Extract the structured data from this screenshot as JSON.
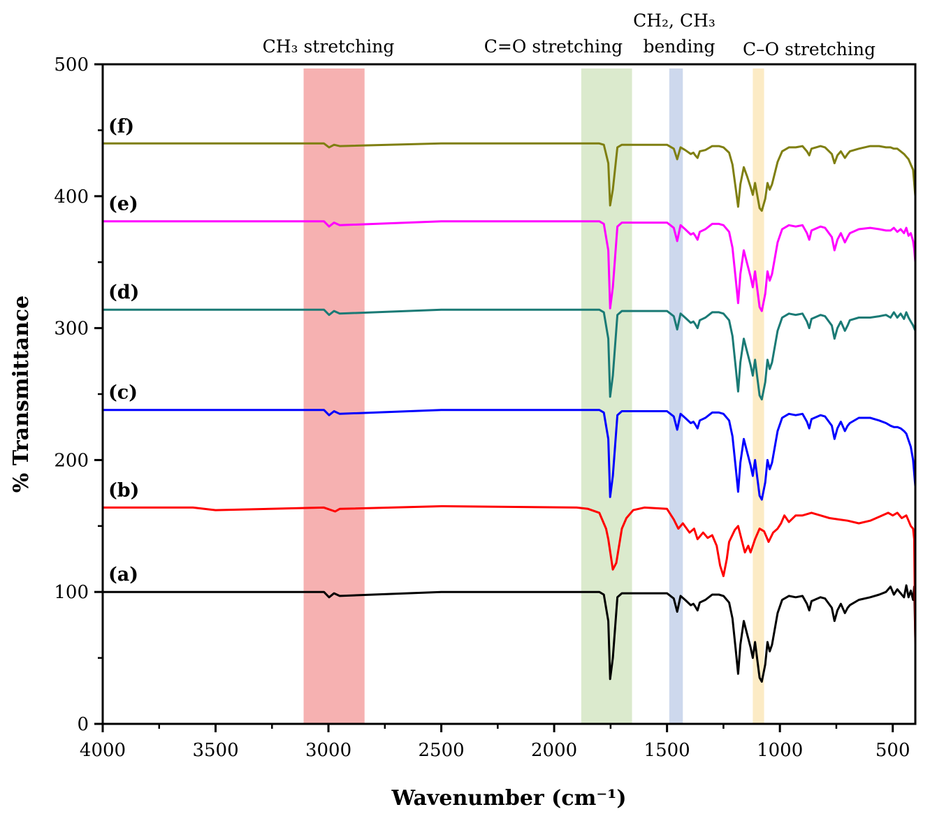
{
  "chart_data": {
    "type": "line",
    "title": "",
    "xlabel": "Wavenumber (cm⁻¹)",
    "ylabel": "% Transmittance",
    "xlim": [
      4000,
      400
    ],
    "ylim": [
      0,
      500
    ],
    "x_ticks": [
      4000,
      3500,
      3000,
      2500,
      2000,
      1500,
      1000,
      500
    ],
    "x_tick_labels": [
      "4000",
      "3500",
      "3000",
      "2500",
      "2000",
      "1500",
      "1000",
      "500"
    ],
    "y_ticks": [
      0,
      100,
      200,
      300,
      400,
      500
    ],
    "y_tick_labels": [
      "0",
      "100",
      "200",
      "300",
      "400",
      "500"
    ],
    "grid": false,
    "bands": [
      {
        "from": 3110,
        "to": 2840,
        "color": "#f5a3a3",
        "label": "CH₃ stretching"
      },
      {
        "from": 1880,
        "to": 1655,
        "color": "#d5e6c4",
        "label": "C=O stretching"
      },
      {
        "from": 1490,
        "to": 1430,
        "color": "#c4d1ea",
        "label_line1": "CH₂, CH₃",
        "label_line2": "bending"
      },
      {
        "from": 1120,
        "to": 1070,
        "color": "#fbe8bb",
        "label": "C–O stretching"
      }
    ],
    "series": [
      {
        "name": "(a)",
        "color": "#000000",
        "baseline": 100,
        "x": [
          4000,
          3600,
          3020,
          2997,
          2975,
          2950,
          2500,
          1900,
          1800,
          1780,
          1760,
          1752,
          1740,
          1720,
          1700,
          1500,
          1470,
          1455,
          1440,
          1420,
          1395,
          1383,
          1375,
          1365,
          1355,
          1330,
          1300,
          1270,
          1250,
          1225,
          1210,
          1195,
          1185,
          1175,
          1160,
          1145,
          1130,
          1120,
          1110,
          1090,
          1080,
          1065,
          1055,
          1045,
          1035,
          1010,
          990,
          960,
          930,
          900,
          880,
          870,
          860,
          820,
          800,
          770,
          758,
          745,
          730,
          712,
          700,
          690,
          650,
          600,
          560,
          530,
          510,
          495,
          480,
          465,
          450,
          440,
          430,
          420,
          410,
          405,
          400
        ],
        "y": [
          100,
          100,
          100,
          96,
          99,
          97,
          100,
          100,
          100,
          98,
          78,
          34,
          50,
          96,
          99,
          99,
          95,
          85,
          97,
          94,
          90,
          91,
          89,
          86,
          92,
          94,
          98,
          98,
          97,
          92,
          80,
          55,
          38,
          60,
          78,
          68,
          58,
          50,
          62,
          35,
          32,
          45,
          62,
          55,
          60,
          84,
          94,
          97,
          96,
          97,
          91,
          86,
          93,
          96,
          95,
          88,
          78,
          86,
          91,
          84,
          88,
          90,
          94,
          96,
          98,
          100,
          104,
          98,
          102,
          99,
          96,
          105,
          96,
          101,
          94,
          104,
          65
        ]
      },
      {
        "name": "(b)",
        "color": "#ff0000",
        "baseline": 164,
        "x": [
          4000,
          3600,
          3500,
          3020,
          2970,
          2950,
          2500,
          1900,
          1850,
          1800,
          1770,
          1760,
          1740,
          1725,
          1700,
          1680,
          1650,
          1600,
          1500,
          1470,
          1450,
          1430,
          1400,
          1380,
          1365,
          1340,
          1320,
          1300,
          1280,
          1265,
          1250,
          1235,
          1225,
          1200,
          1185,
          1170,
          1155,
          1140,
          1130,
          1110,
          1090,
          1070,
          1050,
          1030,
          1010,
          995,
          980,
          960,
          930,
          900,
          860,
          820,
          780,
          740,
          700,
          650,
          600,
          560,
          520,
          500,
          480,
          460,
          440,
          430,
          420,
          410,
          405,
          400
        ],
        "y": [
          164,
          164,
          162,
          164,
          161,
          163,
          165,
          164,
          163,
          160,
          148,
          140,
          117,
          122,
          148,
          156,
          162,
          164,
          163,
          155,
          148,
          152,
          145,
          148,
          140,
          145,
          141,
          143,
          135,
          120,
          112,
          125,
          138,
          147,
          150,
          140,
          130,
          135,
          130,
          140,
          148,
          146,
          138,
          145,
          148,
          152,
          158,
          153,
          158,
          158,
          160,
          158,
          156,
          155,
          154,
          152,
          154,
          157,
          160,
          158,
          160,
          156,
          158,
          154,
          150,
          148,
          140,
          60
        ]
      },
      {
        "name": "(c)",
        "color": "#0000ff",
        "baseline": 238,
        "x": [
          4000,
          3600,
          3020,
          2997,
          2975,
          2950,
          2500,
          1900,
          1800,
          1780,
          1760,
          1752,
          1740,
          1720,
          1700,
          1500,
          1470,
          1455,
          1440,
          1420,
          1395,
          1383,
          1375,
          1365,
          1355,
          1330,
          1300,
          1270,
          1250,
          1225,
          1210,
          1195,
          1185,
          1175,
          1160,
          1145,
          1130,
          1120,
          1110,
          1090,
          1080,
          1065,
          1055,
          1045,
          1035,
          1010,
          990,
          960,
          930,
          900,
          880,
          870,
          860,
          820,
          800,
          770,
          758,
          745,
          730,
          712,
          700,
          690,
          650,
          600,
          560,
          530,
          510,
          495,
          480,
          465,
          450,
          440,
          430,
          420,
          410,
          405,
          400
        ],
        "y": [
          238,
          238,
          238,
          234,
          237,
          235,
          238,
          238,
          238,
          236,
          216,
          172,
          188,
          234,
          237,
          237,
          233,
          223,
          235,
          232,
          228,
          229,
          227,
          224,
          230,
          232,
          236,
          236,
          235,
          230,
          218,
          193,
          176,
          198,
          216,
          206,
          196,
          188,
          200,
          173,
          170,
          183,
          200,
          193,
          198,
          222,
          232,
          235,
          234,
          235,
          229,
          224,
          231,
          234,
          233,
          226,
          216,
          224,
          229,
          222,
          226,
          228,
          232,
          232,
          230,
          228,
          226,
          225,
          225,
          224,
          222,
          220,
          215,
          210,
          200,
          190,
          180
        ]
      },
      {
        "name": "(d)",
        "color": "#1a7a75",
        "baseline": 314,
        "x": [
          4000,
          3600,
          3020,
          2997,
          2975,
          2950,
          2500,
          1900,
          1800,
          1780,
          1760,
          1752,
          1740,
          1720,
          1700,
          1500,
          1470,
          1455,
          1440,
          1420,
          1395,
          1383,
          1375,
          1365,
          1355,
          1330,
          1300,
          1270,
          1250,
          1225,
          1210,
          1195,
          1185,
          1175,
          1160,
          1145,
          1130,
          1120,
          1110,
          1090,
          1080,
          1065,
          1055,
          1045,
          1035,
          1010,
          990,
          960,
          930,
          900,
          880,
          870,
          860,
          820,
          800,
          770,
          758,
          745,
          730,
          712,
          700,
          690,
          650,
          600,
          560,
          530,
          510,
          495,
          480,
          465,
          450,
          440,
          430,
          420,
          410,
          405,
          400
        ],
        "y": [
          314,
          314,
          314,
          310,
          313,
          311,
          314,
          314,
          314,
          312,
          292,
          248,
          264,
          310,
          313,
          313,
          309,
          299,
          311,
          308,
          304,
          305,
          303,
          300,
          306,
          308,
          312,
          312,
          311,
          306,
          294,
          269,
          252,
          274,
          292,
          282,
          272,
          264,
          276,
          249,
          246,
          259,
          276,
          269,
          274,
          298,
          308,
          311,
          310,
          311,
          305,
          300,
          307,
          310,
          309,
          302,
          292,
          300,
          305,
          298,
          302,
          306,
          308,
          308,
          309,
          310,
          308,
          312,
          308,
          311,
          307,
          312,
          308,
          305,
          302,
          300,
          298
        ]
      },
      {
        "name": "(e)",
        "color": "#ff00ff",
        "baseline": 381,
        "x": [
          4000,
          3600,
          3020,
          2997,
          2975,
          2950,
          2500,
          1900,
          1800,
          1780,
          1760,
          1752,
          1740,
          1720,
          1700,
          1500,
          1470,
          1455,
          1440,
          1420,
          1395,
          1383,
          1375,
          1365,
          1355,
          1330,
          1300,
          1270,
          1250,
          1225,
          1210,
          1195,
          1185,
          1175,
          1160,
          1145,
          1130,
          1120,
          1110,
          1090,
          1080,
          1065,
          1055,
          1045,
          1035,
          1010,
          990,
          960,
          930,
          900,
          880,
          870,
          860,
          820,
          800,
          770,
          758,
          745,
          730,
          712,
          700,
          690,
          650,
          600,
          560,
          530,
          510,
          495,
          480,
          465,
          450,
          440,
          430,
          420,
          410,
          405,
          400
        ],
        "y": [
          381,
          381,
          381,
          377,
          380,
          378,
          381,
          381,
          381,
          379,
          359,
          315,
          331,
          377,
          380,
          380,
          376,
          366,
          378,
          375,
          371,
          372,
          370,
          367,
          373,
          375,
          379,
          379,
          378,
          373,
          361,
          336,
          319,
          341,
          359,
          349,
          339,
          331,
          343,
          316,
          313,
          326,
          343,
          336,
          341,
          365,
          375,
          378,
          377,
          378,
          372,
          367,
          374,
          377,
          376,
          369,
          359,
          367,
          372,
          365,
          369,
          372,
          375,
          376,
          375,
          374,
          374,
          376,
          373,
          375,
          372,
          376,
          370,
          372,
          366,
          360,
          350
        ]
      },
      {
        "name": "(f)",
        "color": "#7f7f11",
        "baseline": 440,
        "x": [
          4000,
          3600,
          3020,
          2997,
          2975,
          2950,
          2500,
          1900,
          1800,
          1780,
          1760,
          1752,
          1740,
          1720,
          1700,
          1500,
          1470,
          1455,
          1440,
          1420,
          1395,
          1383,
          1375,
          1365,
          1355,
          1330,
          1300,
          1270,
          1250,
          1225,
          1210,
          1195,
          1185,
          1175,
          1160,
          1145,
          1130,
          1120,
          1110,
          1090,
          1080,
          1065,
          1055,
          1045,
          1035,
          1010,
          990,
          960,
          930,
          900,
          880,
          870,
          860,
          820,
          800,
          770,
          758,
          745,
          730,
          712,
          700,
          690,
          650,
          600,
          560,
          530,
          510,
          495,
          480,
          465,
          450,
          440,
          430,
          420,
          410,
          405,
          400
        ],
        "y": [
          440,
          440,
          440,
          437,
          439,
          438,
          440,
          440,
          440,
          439,
          425,
          393,
          405,
          437,
          439,
          439,
          436,
          428,
          437,
          435,
          432,
          433,
          431,
          429,
          434,
          435,
          438,
          438,
          437,
          433,
          424,
          405,
          392,
          409,
          422,
          415,
          407,
          401,
          410,
          391,
          389,
          398,
          410,
          405,
          409,
          426,
          434,
          437,
          437,
          438,
          434,
          431,
          436,
          438,
          437,
          432,
          425,
          431,
          434,
          429,
          432,
          434,
          436,
          438,
          438,
          437,
          437,
          436,
          436,
          434,
          432,
          430,
          428,
          424,
          420,
          410,
          400
        ]
      }
    ]
  }
}
